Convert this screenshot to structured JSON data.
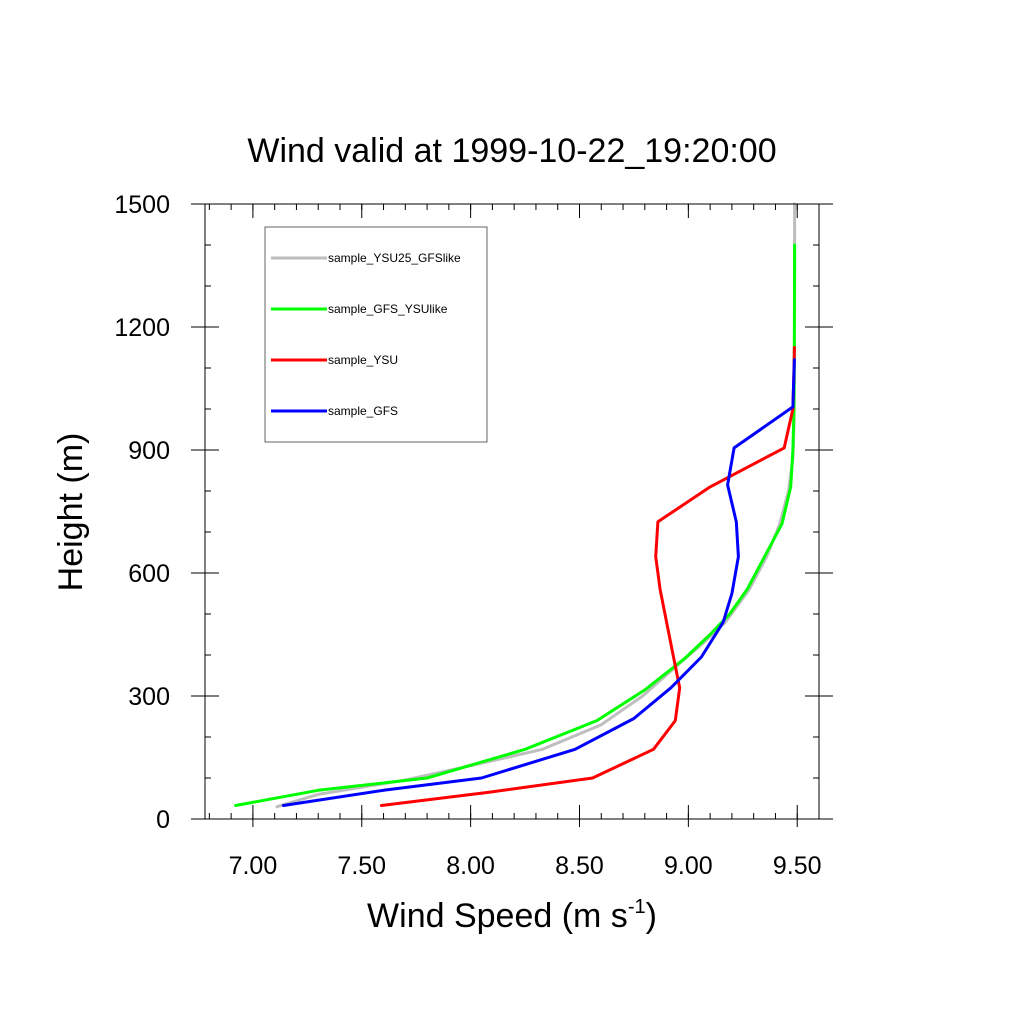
{
  "chart_data": {
    "type": "line",
    "title": "Wind valid at 1999-10-22_19:20:00",
    "xlabel_base": "Wind Speed (m s",
    "xlabel_sup": "-1",
    "xlabel_tail": ")",
    "ylabel": "Height (m)",
    "xlim": [
      6.78,
      9.6
    ],
    "ylim": [
      0,
      1500
    ],
    "x_ticks": [
      7.0,
      7.5,
      8.0,
      8.5,
      9.0,
      9.5
    ],
    "x_tick_labels": [
      "7.00",
      "7.50",
      "8.00",
      "8.50",
      "9.00",
      "9.50"
    ],
    "y_ticks": [
      0,
      300,
      600,
      900,
      1200,
      1500
    ],
    "y_tick_labels": [
      "0",
      "300",
      "600",
      "900",
      "1200",
      "1500"
    ],
    "x_minor_step": 0.1,
    "y_minor_step": 100,
    "grid": false,
    "legend_position": "top-left",
    "series": [
      {
        "name": "sample_YSU25_GFSlike",
        "color": "#bebebe",
        "x": [
          7.11,
          7.3,
          7.7,
          8.0,
          8.33,
          8.6,
          8.79,
          8.96,
          9.07,
          9.17,
          9.28,
          9.36,
          9.42,
          9.46,
          9.48,
          9.485,
          9.487,
          9.488,
          9.488
        ],
        "y": [
          30,
          60,
          95,
          130,
          170,
          230,
          300,
          380,
          430,
          480,
          560,
          640,
          720,
          800,
          880,
          960,
          1100,
          1300,
          1500
        ]
      },
      {
        "name": "sample_GFS_YSUlike",
        "color": "#00ff00",
        "x": [
          6.92,
          7.3,
          7.8,
          8.25,
          8.58,
          8.8,
          8.98,
          9.1,
          9.19,
          9.27,
          9.35,
          9.43,
          9.47,
          9.48,
          9.485,
          9.487,
          9.488
        ],
        "y": [
          33,
          70,
          100,
          170,
          240,
          315,
          390,
          450,
          500,
          560,
          640,
          720,
          810,
          900,
          1000,
          1200,
          1400
        ]
      },
      {
        "name": "sample_YSU",
        "color": "#ff0000",
        "x": [
          7.59,
          8.08,
          8.56,
          8.84,
          8.94,
          8.96,
          8.93,
          8.9,
          8.87,
          8.85,
          8.86,
          9.1,
          9.44,
          9.48,
          9.485,
          9.487
        ],
        "y": [
          33,
          65,
          100,
          170,
          240,
          320,
          400,
          480,
          560,
          640,
          725,
          810,
          905,
          1000,
          1100,
          1150
        ]
      },
      {
        "name": "sample_GFS",
        "color": "#0000ff",
        "x": [
          7.14,
          7.6,
          8.05,
          8.48,
          8.75,
          8.92,
          9.06,
          9.16,
          9.2,
          9.23,
          9.22,
          9.18,
          9.21,
          9.48,
          9.487
        ],
        "y": [
          33,
          70,
          100,
          170,
          245,
          320,
          395,
          480,
          550,
          640,
          725,
          815,
          905,
          1005,
          1120
        ]
      }
    ]
  }
}
